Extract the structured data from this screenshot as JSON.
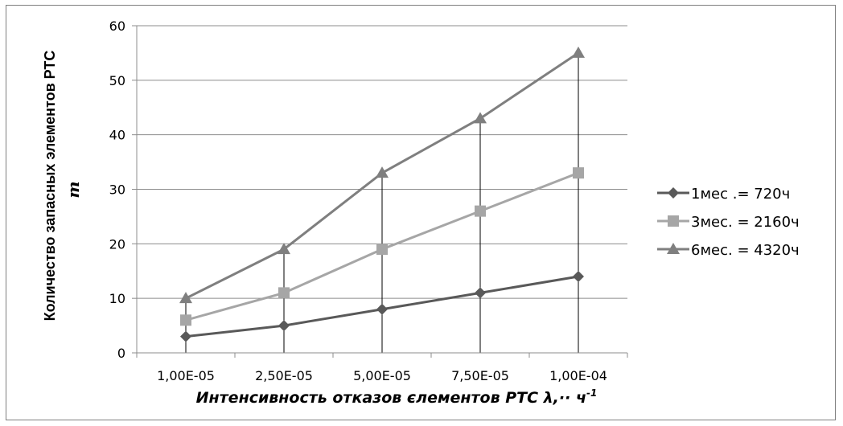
{
  "chart_data": {
    "type": "line",
    "categories": [
      "1,00E-05",
      "2,50E-05",
      "5,00E-05",
      "7,50E-05",
      "1,00E-04"
    ],
    "series": [
      {
        "name": "1мес .= 720ч",
        "values": [
          3,
          5,
          8,
          11,
          14
        ],
        "color": "#595959",
        "marker": "diamond"
      },
      {
        "name": "3мес. = 2160ч",
        "values": [
          6,
          11,
          19,
          26,
          33
        ],
        "color": "#a6a6a6",
        "marker": "square"
      },
      {
        "name": "6мес. = 4320ч",
        "values": [
          10,
          19,
          33,
          43,
          55
        ],
        "color": "#7f7f7f",
        "marker": "triangle"
      }
    ],
    "title": "",
    "xlabel": "Интенсивность отказов єлементов РТС λ,·· ч",
    "xlabel_superscript": "-1",
    "ylabel": "Количество запасных элементов РТС",
    "ylabel_symbol": "m",
    "ylim": [
      0,
      60
    ],
    "yticks": [
      0,
      10,
      20,
      30,
      40,
      50,
      60
    ],
    "grid": "horizontal",
    "drop_lines": true,
    "legend_position": "right"
  }
}
